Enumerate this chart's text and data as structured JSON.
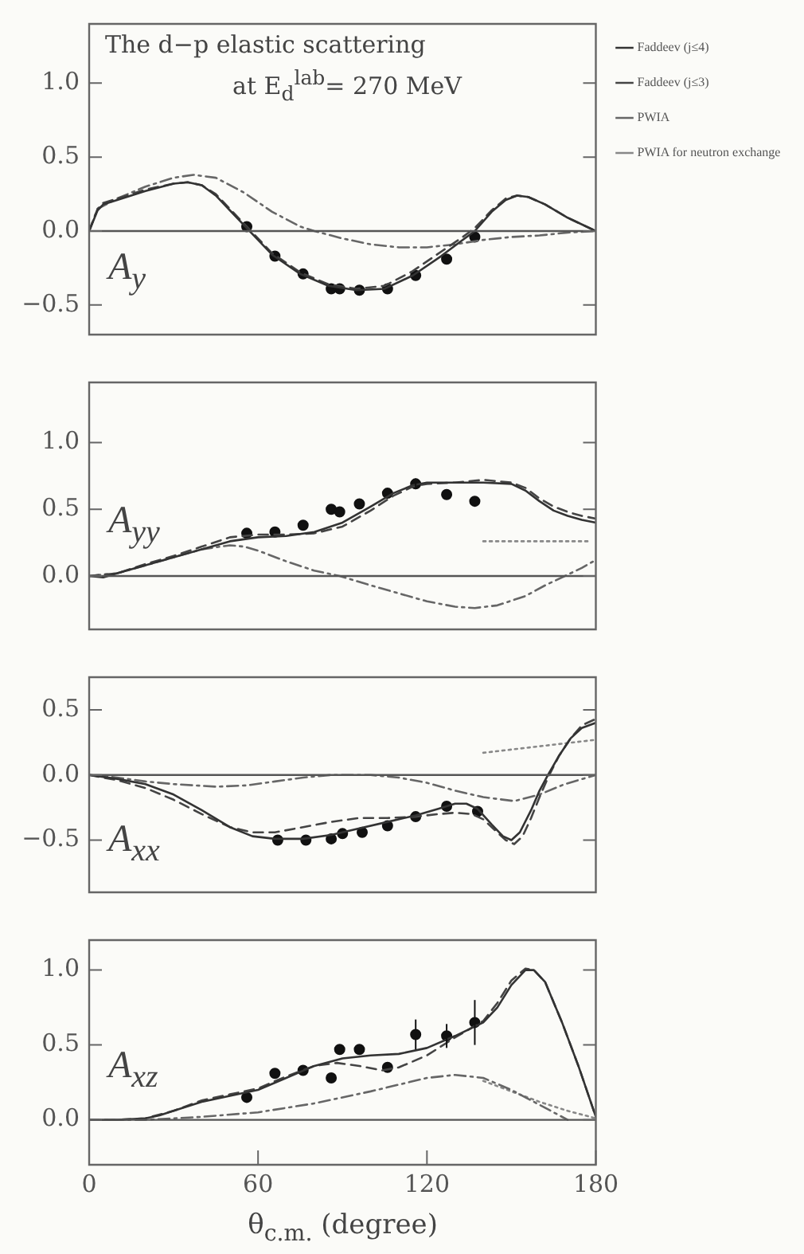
{
  "chart_data": [
    {
      "type": "line",
      "title": "The d−p elastic scattering",
      "subtitle": "at E$_{d}$$^{lab}$= 270 MeV",
      "annotations": [
        "A$_{y}$"
      ],
      "xlim": [
        0,
        180
      ],
      "xticks": [
        0,
        60,
        120,
        180
      ],
      "ylim": [
        -0.7,
        1.4
      ],
      "yticks": [
        {
          "value": -0.5,
          "label": "−0.5"
        },
        {
          "value": 0,
          "label": "0.0"
        },
        {
          "value": 0.5,
          "label": "0.5"
        },
        {
          "value": 1,
          "label": "1.0"
        }
      ],
      "tick_labels": "y",
      "grid": false,
      "legend": "top right",
      "ref_lines": [
        {
          "axis": "y",
          "value": 0,
          "color": "#555555"
        }
      ],
      "series": [
        {
          "name": "Faddeev (j≤4)",
          "type": "line",
          "line_style": "solid",
          "color": "#333333",
          "x": [
            0,
            3,
            5,
            10,
            20,
            30,
            35,
            40,
            45,
            50,
            56,
            65,
            75,
            85,
            95,
            105,
            115,
            125,
            132,
            137,
            143,
            148,
            152,
            156,
            162,
            170,
            180
          ],
          "values": [
            0,
            0.14,
            0.18,
            0.21,
            0.27,
            0.32,
            0.33,
            0.31,
            0.24,
            0.14,
            0.02,
            -0.16,
            -0.29,
            -0.37,
            -0.4,
            -0.39,
            -0.3,
            -0.17,
            -0.07,
            0,
            0.13,
            0.21,
            0.24,
            0.23,
            0.18,
            0.09,
            0
          ]
        },
        {
          "name": "Faddeev (j≤3)",
          "type": "line",
          "line_style": "dashed",
          "color": "#444444",
          "x": [
            0,
            3,
            5,
            10,
            20,
            30,
            35,
            40,
            45,
            50,
            56,
            65,
            75,
            85,
            95,
            105,
            115,
            125,
            132,
            137,
            143,
            148,
            152,
            156,
            162,
            170,
            180
          ],
          "values": [
            0,
            0.15,
            0.19,
            0.22,
            0.28,
            0.32,
            0.33,
            0.31,
            0.25,
            0.15,
            0.03,
            -0.15,
            -0.28,
            -0.36,
            -0.39,
            -0.37,
            -0.27,
            -0.14,
            -0.05,
            0.02,
            0.14,
            0.22,
            0.24,
            0.23,
            0.18,
            0.09,
            0
          ]
        },
        {
          "name": "PWIA",
          "type": "line",
          "line_style": "dashdot",
          "color": "#666666",
          "x": [
            0,
            3,
            10,
            20,
            30,
            37,
            45,
            55,
            65,
            75,
            80,
            90,
            100,
            110,
            120,
            130,
            140,
            150,
            160,
            170,
            180
          ],
          "values": [
            0,
            0.15,
            0.22,
            0.3,
            0.36,
            0.38,
            0.36,
            0.26,
            0.13,
            0.03,
            0,
            -0.05,
            -0.09,
            -0.11,
            -0.11,
            -0.09,
            -0.06,
            -0.04,
            -0.03,
            -0.01,
            0
          ]
        },
        {
          "name": "PWIA for neutron exchange",
          "type": "line",
          "line_style": "dotted",
          "color": "#888888"
        },
        {
          "type": "scatter",
          "marker": "circle",
          "color": "#111111",
          "x": [
            56,
            66,
            76,
            86,
            89,
            96,
            106,
            116,
            127,
            137
          ],
          "values": [
            0.03,
            -0.17,
            -0.29,
            -0.39,
            -0.39,
            -0.4,
            -0.39,
            -0.3,
            -0.19,
            -0.04
          ]
        }
      ]
    },
    {
      "type": "line",
      "annotations": [
        "A$_{yy}$"
      ],
      "xlim": [
        0,
        180
      ],
      "xticks": [
        0,
        60,
        120,
        180
      ],
      "ylim": [
        -0.4,
        1.45
      ],
      "yticks": [
        {
          "value": 0,
          "label": "0.0"
        },
        {
          "value": 0.5,
          "label": "0.5"
        },
        {
          "value": 1,
          "label": "1.0"
        }
      ],
      "tick_labels": "y",
      "grid": false,
      "ref_lines": [
        {
          "axis": "y",
          "value": 0,
          "color": "#555555"
        }
      ],
      "series": [
        {
          "type": "line",
          "line_style": "solid",
          "color": "#333333",
          "x": [
            0,
            5,
            10,
            20,
            30,
            40,
            50,
            60,
            70,
            80,
            90,
            100,
            108,
            115,
            120,
            130,
            140,
            150,
            155,
            160,
            165,
            170,
            175,
            180
          ],
          "values": [
            0,
            -0.01,
            0.02,
            0.08,
            0.14,
            0.2,
            0.26,
            0.29,
            0.3,
            0.33,
            0.4,
            0.52,
            0.62,
            0.68,
            0.7,
            0.7,
            0.7,
            0.69,
            0.64,
            0.56,
            0.49,
            0.45,
            0.42,
            0.4
          ]
        },
        {
          "type": "line",
          "line_style": "dashed",
          "color": "#444444",
          "x": [
            0,
            10,
            20,
            30,
            40,
            50,
            60,
            70,
            80,
            90,
            100,
            108,
            115,
            120,
            130,
            140,
            150,
            155,
            160,
            165,
            170,
            175,
            180
          ],
          "values": [
            0,
            0.02,
            0.09,
            0.15,
            0.22,
            0.29,
            0.31,
            0.31,
            0.32,
            0.37,
            0.49,
            0.6,
            0.67,
            0.69,
            0.7,
            0.72,
            0.7,
            0.66,
            0.58,
            0.52,
            0.48,
            0.45,
            0.43
          ]
        },
        {
          "type": "line",
          "line_style": "dashdot",
          "color": "#666666",
          "x": [
            0,
            10,
            20,
            30,
            40,
            50,
            55,
            60,
            70,
            80,
            89,
            100,
            110,
            120,
            130,
            137,
            145,
            155,
            162,
            169,
            175,
            180
          ],
          "values": [
            0,
            0.02,
            0.08,
            0.14,
            0.2,
            0.23,
            0.22,
            0.19,
            0.11,
            0.04,
            0,
            -0.07,
            -0.13,
            -0.19,
            -0.23,
            -0.24,
            -0.22,
            -0.15,
            -0.07,
            0,
            0.06,
            0.12
          ]
        },
        {
          "type": "line",
          "line_style": "dotted",
          "color": "#888888",
          "x": [
            140,
            160,
            178
          ],
          "values": [
            0.26,
            0.26,
            0.26
          ]
        },
        {
          "type": "scatter",
          "marker": "circle",
          "color": "#111111",
          "x": [
            56,
            66,
            76,
            86,
            89,
            96,
            106,
            116,
            127,
            137
          ],
          "values": [
            0.32,
            0.33,
            0.38,
            0.5,
            0.48,
            0.54,
            0.62,
            0.69,
            0.61,
            0.56
          ],
          "errors": [
            null,
            null,
            null,
            null,
            null,
            null,
            null,
            0.04,
            null,
            null
          ]
        }
      ]
    },
    {
      "type": "line",
      "annotations": [
        "A$_{xx}$"
      ],
      "xlim": [
        0,
        180
      ],
      "xticks": [
        0,
        60,
        120,
        180
      ],
      "ylim": [
        -0.9,
        0.75
      ],
      "yticks": [
        {
          "value": -0.5,
          "label": "−0.5"
        },
        {
          "value": 0,
          "label": "0.0"
        },
        {
          "value": 0.5,
          "label": "0.5"
        }
      ],
      "tick_labels": "y",
      "grid": false,
      "ref_lines": [
        {
          "axis": "y",
          "value": 0,
          "color": "#555555"
        }
      ],
      "series": [
        {
          "type": "line",
          "line_style": "solid",
          "color": "#333333",
          "x": [
            0,
            10,
            20,
            30,
            40,
            50,
            58,
            66,
            76,
            86,
            96,
            106,
            116,
            124,
            130,
            134,
            138,
            143,
            147,
            150,
            153,
            157,
            160,
            163,
            167,
            171,
            175,
            180
          ],
          "values": [
            0,
            -0.03,
            -0.07,
            -0.15,
            -0.27,
            -0.4,
            -0.47,
            -0.49,
            -0.49,
            -0.46,
            -0.41,
            -0.36,
            -0.31,
            -0.26,
            -0.22,
            -0.22,
            -0.26,
            -0.38,
            -0.47,
            -0.5,
            -0.44,
            -0.27,
            -0.12,
            0,
            0.15,
            0.28,
            0.36,
            0.4
          ]
        },
        {
          "type": "line",
          "line_style": "dashed",
          "color": "#444444",
          "x": [
            0,
            10,
            20,
            30,
            40,
            50,
            58,
            66,
            76,
            86,
            96,
            106,
            116,
            124,
            130,
            136,
            140,
            144,
            148,
            151,
            154,
            157,
            160,
            163,
            167,
            171,
            175,
            180
          ],
          "values": [
            0,
            -0.04,
            -0.1,
            -0.19,
            -0.3,
            -0.4,
            -0.44,
            -0.44,
            -0.4,
            -0.36,
            -0.33,
            -0.33,
            -0.32,
            -0.3,
            -0.29,
            -0.3,
            -0.34,
            -0.42,
            -0.5,
            -0.53,
            -0.47,
            -0.33,
            -0.17,
            -0.02,
            0.15,
            0.28,
            0.38,
            0.43
          ]
        },
        {
          "type": "line",
          "line_style": "dashdot",
          "color": "#666666",
          "x": [
            0,
            10,
            20,
            30,
            45,
            56,
            66,
            76,
            86,
            100,
            110,
            120,
            130,
            140,
            151,
            160,
            169,
            180
          ],
          "values": [
            0,
            -0.02,
            -0.05,
            -0.07,
            -0.09,
            -0.08,
            -0.05,
            -0.02,
            0,
            0,
            -0.02,
            -0.06,
            -0.12,
            -0.17,
            -0.2,
            -0.15,
            -0.07,
            0
          ]
        },
        {
          "type": "line",
          "line_style": "dotted",
          "color": "#888888",
          "x": [
            140,
            160,
            180
          ],
          "values": [
            0.17,
            0.22,
            0.27
          ]
        },
        {
          "type": "scatter",
          "marker": "circle",
          "color": "#111111",
          "x": [
            67,
            77,
            86,
            90,
            97,
            106,
            116,
            127,
            138
          ],
          "values": [
            -0.5,
            -0.5,
            -0.49,
            -0.45,
            -0.44,
            -0.39,
            -0.32,
            -0.24,
            -0.28
          ]
        }
      ]
    },
    {
      "type": "line",
      "annotations": [
        "A$_{xz}$"
      ],
      "xlabel": "θ$_{c.m.}$ (degree)",
      "xlim": [
        0,
        180
      ],
      "xticks": [
        0,
        60,
        120,
        180
      ],
      "ylim": [
        -0.3,
        1.2
      ],
      "yticks": [
        {
          "value": 0,
          "label": "0.0"
        },
        {
          "value": 0.5,
          "label": "0.5"
        },
        {
          "value": 1,
          "label": "1.0"
        }
      ],
      "grid": false,
      "ref_lines": [
        {
          "axis": "y",
          "value": 0,
          "color": "#555555"
        }
      ],
      "series": [
        {
          "type": "line",
          "line_style": "solid",
          "color": "#333333",
          "x": [
            0,
            10,
            20,
            25,
            30,
            40,
            50,
            60,
            70,
            80,
            90,
            100,
            110,
            120,
            130,
            140,
            145,
            150,
            155,
            158,
            162,
            168,
            174,
            180
          ],
          "values": [
            0,
            0,
            0.01,
            0.03,
            0.06,
            0.12,
            0.16,
            0.2,
            0.28,
            0.36,
            0.41,
            0.43,
            0.44,
            0.48,
            0.56,
            0.65,
            0.75,
            0.9,
            1,
            1,
            0.92,
            0.65,
            0.35,
            0.02
          ]
        },
        {
          "type": "line",
          "line_style": "dashed",
          "color": "#444444",
          "x": [
            0,
            10,
            20,
            30,
            40,
            50,
            60,
            70,
            80,
            88,
            96,
            104,
            110,
            120,
            130,
            140,
            145,
            150,
            155,
            158,
            162,
            168,
            174,
            180
          ],
          "values": [
            0,
            0,
            0.01,
            0.06,
            0.13,
            0.17,
            0.21,
            0.29,
            0.36,
            0.38,
            0.36,
            0.33,
            0.35,
            0.43,
            0.55,
            0.66,
            0.78,
            0.93,
            1.01,
            1,
            0.92,
            0.65,
            0.35,
            0.02
          ]
        },
        {
          "type": "line",
          "line_style": "dashdot",
          "color": "#666666",
          "x": [
            0,
            20,
            40,
            60,
            80,
            100,
            120,
            130,
            140,
            150,
            160,
            170
          ],
          "values": [
            0,
            0,
            0.02,
            0.05,
            0.11,
            0.19,
            0.28,
            0.3,
            0.28,
            0.2,
            0.1,
            0
          ]
        },
        {
          "type": "line",
          "line_style": "dotted",
          "color": "#888888",
          "x": [
            140,
            150,
            160,
            170,
            180
          ],
          "values": [
            0.26,
            0.19,
            0.12,
            0.06,
            0.01
          ]
        },
        {
          "type": "scatter",
          "marker": "circle",
          "color": "#111111",
          "x": [
            56,
            66,
            76,
            86,
            89,
            96,
            106,
            116,
            127,
            137
          ],
          "values": [
            0.15,
            0.31,
            0.33,
            0.28,
            0.47,
            0.47,
            0.35,
            0.57,
            0.56,
            0.65
          ],
          "errors": [
            null,
            null,
            null,
            null,
            null,
            null,
            null,
            0.1,
            0.08,
            0.15
          ]
        }
      ]
    }
  ]
}
